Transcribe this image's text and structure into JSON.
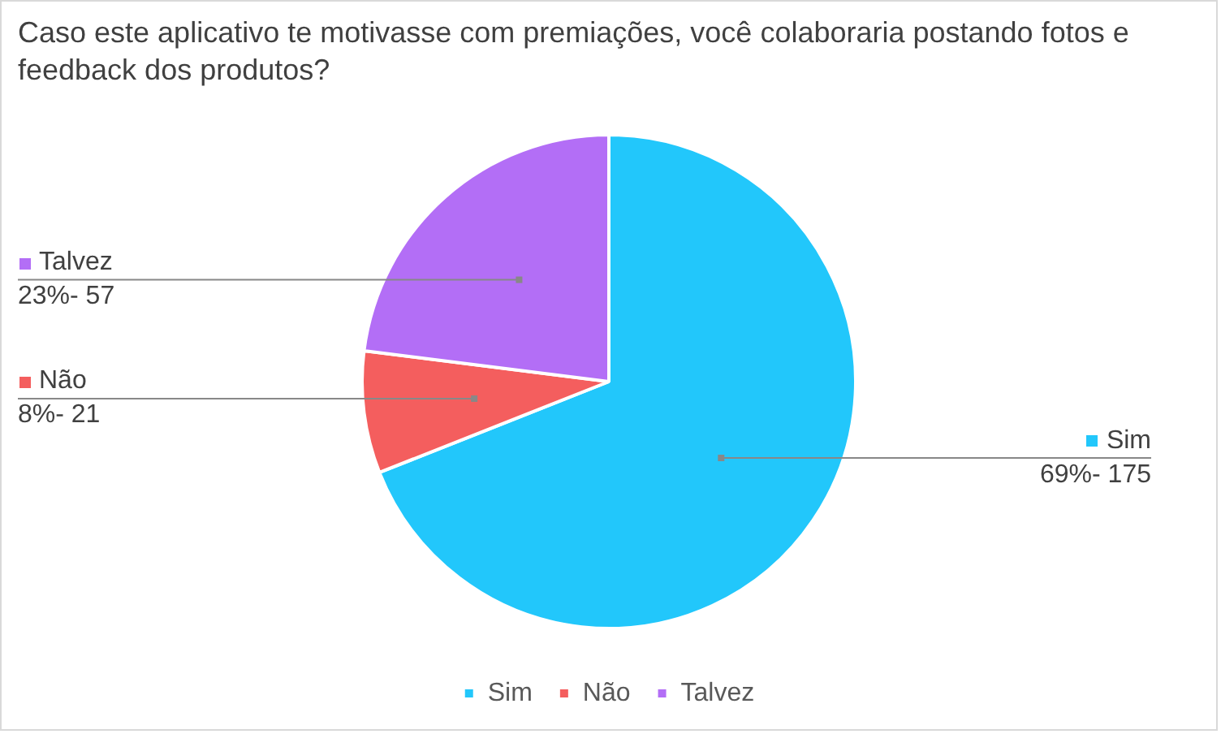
{
  "chart_data": {
    "type": "pie",
    "title": "Caso este aplicativo te motivasse com premiações, você colaboraria postando fotos e feedback dos produtos?",
    "categories": [
      "Sim",
      "Não",
      "Talvez"
    ],
    "values": [
      69,
      8,
      23
    ],
    "colors": [
      "#22c7fb",
      "#f45e5e",
      "#b36ef6"
    ],
    "value_labels": [
      "69%- 175",
      "8%- 21",
      "23%- 57"
    ],
    "legend": "bottom"
  }
}
